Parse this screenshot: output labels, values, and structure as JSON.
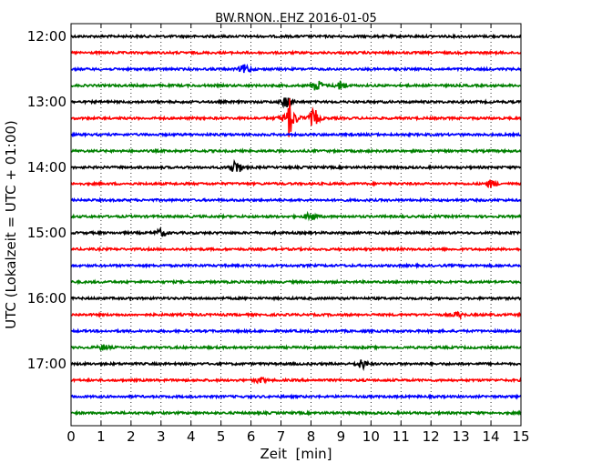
{
  "chart_data": {
    "type": "line",
    "title": "BW.RNON..EHZ 2016-01-05",
    "xlabel": "Zeit  [min]",
    "ylabel": "UTC (Lokalzeit = UTC + 01:00)",
    "xlim": [
      0,
      15
    ],
    "x_ticks": [
      "0",
      "1",
      "2",
      "3",
      "4",
      "5",
      "6",
      "7",
      "8",
      "9",
      "10",
      "11",
      "12",
      "13",
      "14",
      "15"
    ],
    "y_ticks": [
      "12:00",
      "13:00",
      "14:00",
      "15:00",
      "16:00",
      "17:00"
    ],
    "grid": "vertical dotted",
    "trace_interval_minutes": 15,
    "trace_colors": [
      "#000000",
      "#ff0000",
      "#0000ff",
      "#008000"
    ],
    "traces": [
      {
        "start": "12:00",
        "color": "#000000",
        "events": []
      },
      {
        "start": "12:15",
        "color": "#ff0000",
        "events": []
      },
      {
        "start": "12:30",
        "color": "#0000ff",
        "events": [
          {
            "t": 5.8,
            "amp": 0.25
          }
        ]
      },
      {
        "start": "12:45",
        "color": "#008000",
        "events": [
          {
            "t": 8.2,
            "amp": 0.3
          },
          {
            "t": 9.0,
            "amp": 0.25
          }
        ]
      },
      {
        "start": "13:00",
        "color": "#000000",
        "events": [
          {
            "t": 7.2,
            "amp": 0.35
          }
        ]
      },
      {
        "start": "13:15",
        "color": "#ff0000",
        "events": [
          {
            "t": 7.3,
            "amp": 3.8
          },
          {
            "t": 8.1,
            "amp": 0.5
          }
        ]
      },
      {
        "start": "13:30",
        "color": "#0000ff",
        "events": []
      },
      {
        "start": "13:45",
        "color": "#008000",
        "events": []
      },
      {
        "start": "14:00",
        "color": "#000000",
        "events": [
          {
            "t": 5.5,
            "amp": 0.4
          }
        ]
      },
      {
        "start": "14:15",
        "color": "#ff0000",
        "events": [
          {
            "t": 14.0,
            "amp": 0.2
          }
        ]
      },
      {
        "start": "14:30",
        "color": "#0000ff",
        "events": []
      },
      {
        "start": "14:45",
        "color": "#008000",
        "events": [
          {
            "t": 8.0,
            "amp": 0.2
          }
        ]
      },
      {
        "start": "15:00",
        "color": "#000000",
        "events": [
          {
            "t": 3.0,
            "amp": 0.2
          }
        ]
      },
      {
        "start": "15:15",
        "color": "#ff0000",
        "events": []
      },
      {
        "start": "15:30",
        "color": "#0000ff",
        "events": []
      },
      {
        "start": "15:45",
        "color": "#008000",
        "events": []
      },
      {
        "start": "16:00",
        "color": "#000000",
        "events": []
      },
      {
        "start": "16:15",
        "color": "#ff0000",
        "events": [
          {
            "t": 12.9,
            "amp": 0.15
          }
        ]
      },
      {
        "start": "16:30",
        "color": "#0000ff",
        "events": []
      },
      {
        "start": "16:45",
        "color": "#008000",
        "events": [
          {
            "t": 1.1,
            "amp": 0.15
          }
        ]
      },
      {
        "start": "17:00",
        "color": "#000000",
        "events": [
          {
            "t": 9.7,
            "amp": 0.25
          }
        ]
      },
      {
        "start": "17:15",
        "color": "#ff0000",
        "events": [
          {
            "t": 6.3,
            "amp": 0.15
          }
        ]
      },
      {
        "start": "17:30",
        "color": "#0000ff",
        "events": []
      },
      {
        "start": "17:45",
        "color": "#008000",
        "events": []
      }
    ]
  }
}
